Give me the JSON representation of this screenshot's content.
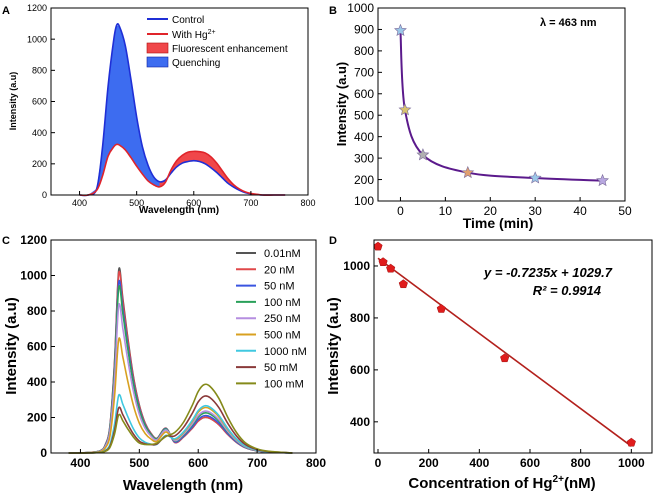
{
  "chart_data": [
    {
      "panel": "A",
      "type": "area",
      "xlabel": "Wavelength (nm)",
      "ylabel": "Intensity (a.u)",
      "xlim": [
        350,
        800
      ],
      "ylim": [
        0,
        1200
      ],
      "xticks": [
        400,
        500,
        600,
        700,
        800
      ],
      "yticks": [
        0,
        200,
        400,
        600,
        800,
        1000,
        1200
      ],
      "legend": [
        {
          "label": "Control",
          "kind": "line",
          "color": "#1f2fd6"
        },
        {
          "label": "With Hg",
          "sup": "2+",
          "kind": "line",
          "color": "#e0242a"
        },
        {
          "label": "Fluorescent enhancement",
          "kind": "fill",
          "color": "#f0474a"
        },
        {
          "label": "Quenching",
          "kind": "fill",
          "color": "#3d6cf0"
        }
      ],
      "series": [
        {
          "name": "Control",
          "color": "#1f2fd6",
          "x": [
            400,
            415,
            430,
            440,
            450,
            460,
            465,
            470,
            480,
            490,
            500,
            510,
            520,
            530,
            540,
            550,
            560,
            570,
            580,
            590,
            600,
            610,
            620,
            630,
            640,
            650,
            660,
            670,
            680,
            690,
            700,
            720,
            740,
            760
          ],
          "y": [
            0,
            0,
            40,
            300,
            700,
            1000,
            1090,
            1080,
            960,
            740,
            500,
            310,
            190,
            115,
            85,
            95,
            140,
            180,
            205,
            215,
            220,
            215,
            200,
            175,
            145,
            110,
            75,
            50,
            30,
            15,
            8,
            0,
            0,
            0
          ]
        },
        {
          "name": "With Hg2+",
          "color": "#e0242a",
          "x": [
            400,
            415,
            430,
            440,
            450,
            460,
            465,
            470,
            480,
            490,
            500,
            510,
            520,
            530,
            540,
            550,
            560,
            570,
            580,
            590,
            600,
            610,
            620,
            630,
            640,
            650,
            660,
            670,
            680,
            690,
            700,
            720,
            740,
            760
          ],
          "y": [
            0,
            0,
            30,
            120,
            250,
            310,
            325,
            320,
            290,
            240,
            185,
            135,
            90,
            65,
            52,
            80,
            160,
            220,
            255,
            275,
            280,
            278,
            270,
            245,
            205,
            155,
            105,
            65,
            38,
            20,
            10,
            0,
            0,
            0
          ]
        }
      ]
    },
    {
      "panel": "B",
      "type": "line",
      "xlabel": "Time (min)",
      "ylabel": "Intensity (a.u)",
      "annotation": "λ = 463 nm",
      "xlim": [
        -5,
        50
      ],
      "ylim": [
        100,
        1000
      ],
      "xticks": [
        0,
        10,
        20,
        30,
        40,
        50
      ],
      "yticks": [
        100,
        200,
        300,
        400,
        500,
        600,
        700,
        800,
        900,
        1000
      ],
      "series": [
        {
          "name": "Intensity",
          "color": "#5b1a8c",
          "x": [
            0,
            1,
            5,
            15,
            30,
            45
          ],
          "y": [
            895,
            525,
            315,
            232,
            207,
            195
          ]
        }
      ]
    },
    {
      "panel": "C",
      "type": "line",
      "xlabel": "Wavelength (nm)",
      "ylabel": "Intensity (a.u)",
      "xlim": [
        350,
        800
      ],
      "ylim": [
        0,
        1200
      ],
      "xticks": [
        400,
        500,
        600,
        700,
        800
      ],
      "yticks": [
        0,
        200,
        400,
        600,
        800,
        1000,
        1200
      ],
      "series": [
        {
          "name": "0.01nM",
          "color": "#555555",
          "peak1": 1030,
          "peak2": 200
        },
        {
          "name": "20 nM",
          "color": "#e0484a",
          "peak1": 1010,
          "peak2": 200
        },
        {
          "name": "50 nM",
          "color": "#3a55e0",
          "peak1": 960,
          "peak2": 210
        },
        {
          "name": "100 nM",
          "color": "#2aa05a",
          "peak1": 930,
          "peak2": 225
        },
        {
          "name": "250 nM",
          "color": "#b58ee0",
          "peak1": 830,
          "peak2": 235
        },
        {
          "name": "500 nM",
          "color": "#d8a020",
          "peak1": 640,
          "peak2": 255
        },
        {
          "name": "1000 nM",
          "color": "#40c8e0",
          "peak1": 325,
          "peak2": 265
        },
        {
          "name": "50 mM",
          "color": "#8a3a3a",
          "peak1": 255,
          "peak2": 320
        },
        {
          "name": "100 mM",
          "color": "#858a1a",
          "peak1": 215,
          "peak2": 385
        }
      ]
    },
    {
      "panel": "D",
      "type": "scatter",
      "xlabel": "Concentration of Hg",
      "xlabel_sup": "2+",
      "xlabel_suffix": "(nM)",
      "ylabel": "Intensity (a.u)",
      "equation": "y = -0.7235x + 1029.7",
      "r2": "R² = 0.9914",
      "xlim": [
        0,
        1050
      ],
      "ylim": [
        280,
        1100
      ],
      "xticks": [
        0,
        200,
        400,
        600,
        800,
        1000
      ],
      "yticks": [
        400,
        600,
        800,
        1000
      ],
      "fit": {
        "slope": -0.7235,
        "intercept": 1029.7,
        "x_range": [
          0,
          1000
        ],
        "color": "#b3201c"
      },
      "points": {
        "color": "#e01c1c",
        "x": [
          0.01,
          20,
          50,
          100,
          250,
          500,
          1000
        ],
        "y": [
          1075,
          1015,
          990,
          930,
          835,
          645,
          320
        ]
      }
    }
  ],
  "panel_labels": [
    "A",
    "B",
    "C",
    "D"
  ]
}
